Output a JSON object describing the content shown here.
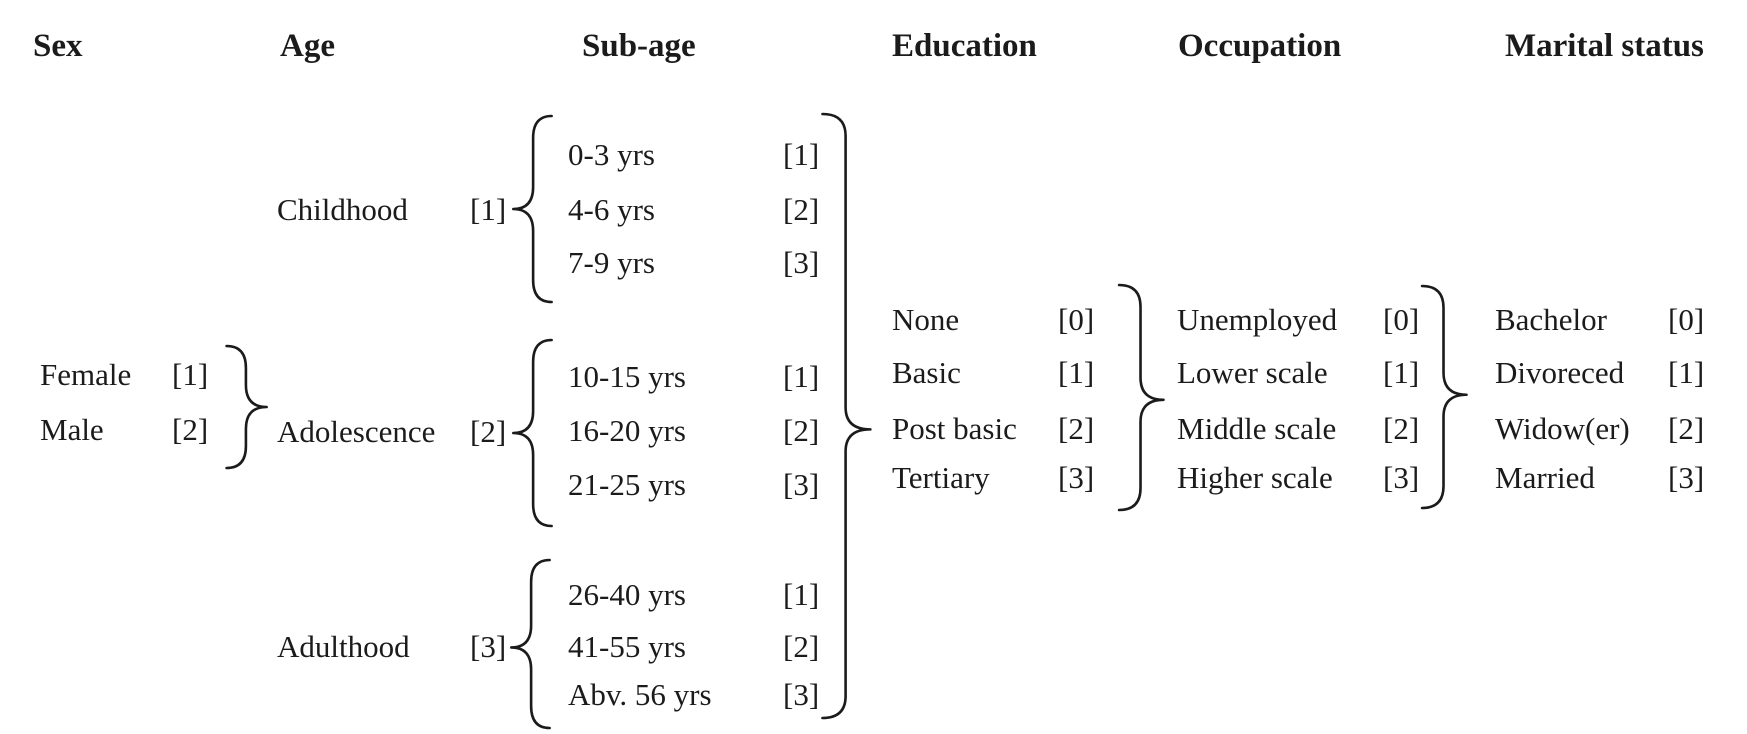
{
  "colors": {
    "ink": "#1b1b1b",
    "background": "#ffffff"
  },
  "columns": {
    "sex": {
      "header": "Sex",
      "items": [
        {
          "label": "Female",
          "code": "[1]"
        },
        {
          "label": "Male",
          "code": "[2]"
        }
      ]
    },
    "age": {
      "header": "Age",
      "items": [
        {
          "label": "Childhood",
          "code": "[1]"
        },
        {
          "label": "Adolescence",
          "code": "[2]"
        },
        {
          "label": "Adulthood",
          "code": "[3]"
        }
      ]
    },
    "sub_age": {
      "header": "Sub-age",
      "groups": [
        {
          "items": [
            {
              "label": "0-3 yrs",
              "code": "[1]"
            },
            {
              "label": "4-6 yrs",
              "code": "[2]"
            },
            {
              "label": "7-9 yrs",
              "code": "[3]"
            }
          ]
        },
        {
          "items": [
            {
              "label": "10-15 yrs",
              "code": "[1]"
            },
            {
              "label": "16-20 yrs",
              "code": "[2]"
            },
            {
              "label": "21-25 yrs",
              "code": "[3]"
            }
          ]
        },
        {
          "items": [
            {
              "label": "26-40 yrs",
              "code": "[1]"
            },
            {
              "label": "41-55 yrs",
              "code": "[2]"
            },
            {
              "label": "Abv. 56 yrs",
              "code": "[3]"
            }
          ]
        }
      ]
    },
    "education": {
      "header": "Education",
      "items": [
        {
          "label": "None",
          "code": "[0]"
        },
        {
          "label": "Basic",
          "code": "[1]"
        },
        {
          "label": "Post basic",
          "code": "[2]"
        },
        {
          "label": "Tertiary",
          "code": "[3]"
        }
      ]
    },
    "occupation": {
      "header": "Occupation",
      "items": [
        {
          "label": "Unemployed",
          "code": "[0]"
        },
        {
          "label": "Lower scale",
          "code": "[1]"
        },
        {
          "label": "Middle scale",
          "code": "[2]"
        },
        {
          "label": "Higher scale",
          "code": "[3]"
        }
      ]
    },
    "marital_status": {
      "header": "Marital status",
      "items": [
        {
          "label": "Bachelor",
          "code": "[0]"
        },
        {
          "label": "Divoreced",
          "code": "[1]"
        },
        {
          "label": "Widow(er)",
          "code": "[2]"
        },
        {
          "label": "Married",
          "code": "[3]"
        }
      ]
    }
  }
}
